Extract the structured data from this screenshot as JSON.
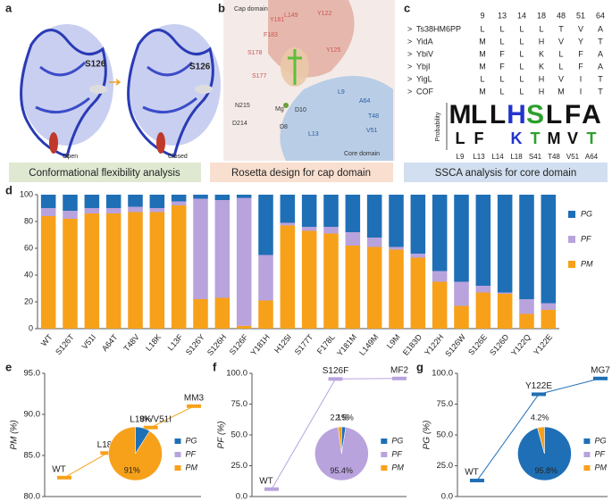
{
  "panel_labels": [
    "a",
    "b",
    "c",
    "d",
    "e",
    "f",
    "g"
  ],
  "panel_a": {
    "labels": [
      "S126",
      "S126",
      "Open",
      "Closed"
    ]
  },
  "panel_b": {
    "labels": [
      "Cap domain",
      "Core domain",
      "L149",
      "Y122",
      "Y181",
      "F183",
      "S178",
      "Y125",
      "S177",
      "N215",
      "Mg",
      "D10",
      "L9",
      "A64",
      "T48",
      "V51",
      "L13",
      "D214",
      "D8"
    ]
  },
  "panel_c": {
    "marker": ">",
    "columns": [
      "9",
      "13",
      "14",
      "18",
      "48",
      "51",
      "64"
    ],
    "rows": [
      {
        "name": "Ts38HM6PP",
        "residues": [
          "L",
          "L",
          "L",
          "L",
          "T",
          "V",
          "A"
        ]
      },
      {
        "name": "YidA",
        "residues": [
          "M",
          "L",
          "L",
          "H",
          "V",
          "Y",
          "T"
        ]
      },
      {
        "name": "YbiV",
        "residues": [
          "M",
          "F",
          "L",
          "K",
          "L",
          "F",
          "A"
        ]
      },
      {
        "name": "YbjI",
        "residues": [
          "M",
          "F",
          "L",
          "K",
          "L",
          "F",
          "A"
        ]
      },
      {
        "name": "YigL",
        "residues": [
          "L",
          "L",
          "L",
          "H",
          "V",
          "I",
          "T"
        ]
      },
      {
        "name": "COF",
        "residues": [
          "M",
          "L",
          "L",
          "H",
          "M",
          "I",
          "T"
        ]
      }
    ],
    "logo_axis": "Probability",
    "logo": [
      [
        "M",
        "L"
      ],
      [
        "L",
        "F"
      ],
      [
        "L"
      ],
      [
        "H",
        "K"
      ],
      [
        "S",
        "T"
      ],
      [
        "L",
        "M"
      ],
      [
        "F",
        "V"
      ],
      [
        "A",
        "T"
      ]
    ],
    "logo_positions": [
      "L9",
      "L13",
      "L14",
      "L18",
      "S41",
      "T48",
      "V51",
      "A64"
    ]
  },
  "banners": [
    "Conformational flexibility analysis",
    "Rosetta design for cap domain",
    "SSCA analysis for core domain"
  ],
  "chart_data": [
    {
      "type": "stacked-bar",
      "categories": [
        "WT",
        "S126T",
        "V51I",
        "A64T",
        "T48V",
        "L18K",
        "L13F",
        "S126Y",
        "S126H",
        "S126F",
        "Y181H",
        "H125I",
        "S177T",
        "F178L",
        "Y181M",
        "L149M",
        "L9M",
        "E183D",
        "Y122H",
        "S126W",
        "S126E",
        "S126D",
        "Y122Q",
        "Y122E"
      ],
      "series": [
        {
          "name": "PM",
          "color": "#f7a11a",
          "values": [
            84,
            82,
            86,
            86,
            87,
            87,
            92,
            22,
            23,
            2.1,
            21,
            77,
            73,
            71,
            62,
            61,
            59,
            53,
            35,
            17,
            27,
            26,
            11,
            14
          ]
        },
        {
          "name": "PF",
          "color": "#b9a3dd",
          "values": [
            6,
            6,
            4,
            4,
            4,
            3,
            3,
            75,
            73,
            95.4,
            34,
            2,
            3,
            5,
            10,
            7,
            2,
            3,
            8,
            18,
            5,
            1,
            11,
            5
          ]
        },
        {
          "name": "PG",
          "color": "#1f6fb6",
          "values": [
            10,
            12,
            10,
            10,
            9,
            10,
            5,
            3,
            4,
            2.5,
            45,
            21,
            24,
            24,
            28,
            32,
            39,
            44,
            57,
            65,
            68,
            73,
            78,
            81
          ]
        }
      ],
      "ylim": [
        0,
        100
      ],
      "yticks": [
        0,
        20,
        40,
        60,
        80,
        100
      ]
    },
    {
      "type": "step-line",
      "y_label": "PM (%)",
      "color": "#f7a11a",
      "categories": [
        "WT",
        "L18K",
        "L18K/V51I",
        "MM3"
      ],
      "values": [
        82.3,
        85.3,
        88.4,
        91.0
      ],
      "ylim": [
        80,
        95
      ],
      "yticks": [
        {
          "value": 80,
          "label": "80.0"
        },
        {
          "value": 85,
          "label": "85.0"
        },
        {
          "value": 90,
          "label": "90.0"
        },
        {
          "value": 95,
          "label": "95.0"
        }
      ],
      "pie": {
        "names": [
          "PG",
          "PF",
          "PM"
        ],
        "colors": [
          "#1f6fb6",
          "#b9a3dd",
          "#f7a11a"
        ],
        "values": [
          9,
          0,
          91
        ],
        "value_labels": [
          "9%",
          null,
          "91%"
        ]
      }
    },
    {
      "type": "step-line",
      "y_label": "PF (%)",
      "color": "#b9a3dd",
      "categories": [
        "WT",
        "S126F",
        "MF2"
      ],
      "values": [
        6,
        95.4,
        95.8
      ],
      "ylim": [
        0,
        100
      ],
      "yticks": [
        {
          "value": 0,
          "label": "0.0"
        },
        {
          "value": 25,
          "label": "25.0"
        },
        {
          "value": 50,
          "label": "50.0"
        },
        {
          "value": 75,
          "label": "75.0"
        },
        {
          "value": 100,
          "label": "100.0"
        }
      ],
      "pie": {
        "names": [
          "PG",
          "PF",
          "PM"
        ],
        "colors": [
          "#1f6fb6",
          "#b9a3dd",
          "#f7a11a"
        ],
        "values": [
          2.5,
          95.4,
          2.1
        ],
        "value_labels": [
          "2.5%",
          "95.4%",
          "2.1%"
        ]
      }
    },
    {
      "type": "step-line",
      "y_label": "PG (%)",
      "color": "#1f6fb6",
      "categories": [
        "WT",
        "Y122E",
        "MG7"
      ],
      "values": [
        13,
        83,
        95.8
      ],
      "ylim": [
        0,
        100
      ],
      "yticks": [
        {
          "value": 0,
          "label": "0.0"
        },
        {
          "value": 25,
          "label": "25.0"
        },
        {
          "value": 50,
          "label": "50.0"
        },
        {
          "value": 75,
          "label": "75.0"
        },
        {
          "value": 100,
          "label": "100.0"
        }
      ],
      "pie": {
        "names": [
          "PG",
          "PF",
          "PM"
        ],
        "colors": [
          "#1f6fb6",
          "#b9a3dd",
          "#f7a11a"
        ],
        "values": [
          95.8,
          0,
          4.2
        ],
        "value_labels": [
          "95.8%",
          null,
          "4.2%"
        ]
      }
    }
  ]
}
